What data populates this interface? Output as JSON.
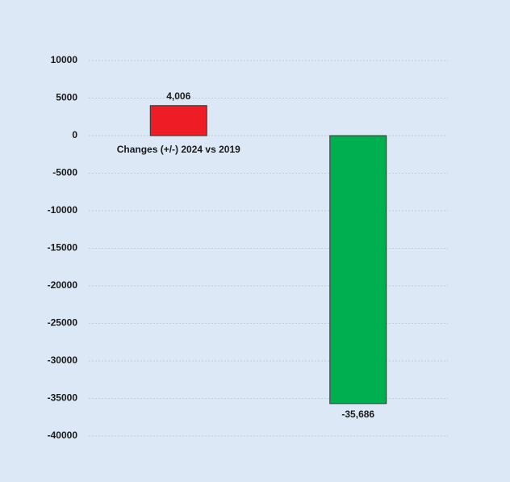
{
  "chart_data": {
    "type": "bar",
    "xlabel": "Changes (+/-) 2024 vs 2019",
    "categories": [
      null,
      null
    ],
    "values": [
      4006,
      -35686
    ],
    "value_labels": [
      "4,006",
      "-35,686"
    ],
    "colors": [
      "#ee1c24",
      "#00b050"
    ],
    "ylim": [
      -40000,
      10000
    ],
    "yticks": [
      10000,
      5000,
      0,
      -5000,
      -10000,
      -15000,
      -20000,
      -25000,
      -30000,
      -35000,
      -40000
    ],
    "grid": true
  }
}
